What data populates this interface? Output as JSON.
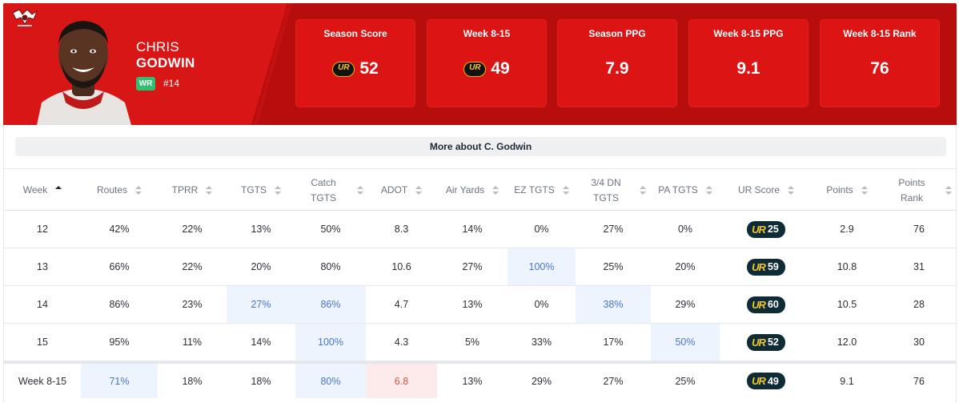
{
  "player": {
    "first_name": "CHRIS",
    "last_name": "GODWIN",
    "position": "WR",
    "jersey": "#14"
  },
  "colors": {
    "header_bg": "#b70d0d",
    "panel_bg": "#d91616",
    "card_bg": "#dd1414",
    "badge_green": "#2fc06f",
    "highlight_blue": "#eef4fd",
    "highlight_red": "#fdeaea",
    "ur_pill_bg": "#0f2b36",
    "ur_gold": "#f4c430"
  },
  "stat_cards": [
    {
      "label": "Season Score",
      "value": "52",
      "ur_icon": true
    },
    {
      "label": "Week 8-15",
      "value": "49",
      "ur_icon": true
    },
    {
      "label": "Season PPG",
      "value": "7.9",
      "ur_icon": false
    },
    {
      "label": "Week 8-15 PPG",
      "value": "9.1",
      "ur_icon": false
    },
    {
      "label": "Week 8-15 Rank",
      "value": "76",
      "ur_icon": false
    }
  ],
  "ur_mark": "UR",
  "more_button": "More about C. Godwin",
  "table": {
    "columns": [
      {
        "key": "week",
        "label": "Week",
        "sorted": true
      },
      {
        "key": "routes",
        "label": "Routes"
      },
      {
        "key": "tprr",
        "label": "TPRR"
      },
      {
        "key": "tgts",
        "label": "TGTS"
      },
      {
        "key": "catch_tgts",
        "label": "Catch TGTS"
      },
      {
        "key": "adot",
        "label": "ADOT"
      },
      {
        "key": "air_yards",
        "label": "Air Yards"
      },
      {
        "key": "ez_tgts",
        "label": "EZ TGTS"
      },
      {
        "key": "dn34_tgts",
        "label": "3/4 DN TGTS"
      },
      {
        "key": "pa_tgts",
        "label": "PA TGTS"
      },
      {
        "key": "ur_score",
        "label": "UR Score"
      },
      {
        "key": "points",
        "label": "Points"
      },
      {
        "key": "points_rank",
        "label": "Points Rank"
      }
    ],
    "rows": [
      {
        "week": "12",
        "routes": "42%",
        "tprr": "22%",
        "tgts": "13%",
        "catch_tgts": "50%",
        "adot": "8.3",
        "air_yards": "14%",
        "ez_tgts": "0%",
        "dn34_tgts": "27%",
        "pa_tgts": "0%",
        "ur_score": "25",
        "points": "2.9",
        "points_rank": "76",
        "hl": {}
      },
      {
        "week": "13",
        "routes": "66%",
        "tprr": "22%",
        "tgts": "20%",
        "catch_tgts": "80%",
        "adot": "10.6",
        "air_yards": "27%",
        "ez_tgts": "100%",
        "dn34_tgts": "25%",
        "pa_tgts": "20%",
        "ur_score": "59",
        "points": "10.8",
        "points_rank": "31",
        "hl": {
          "ez_tgts": "blue"
        }
      },
      {
        "week": "14",
        "routes": "86%",
        "tprr": "23%",
        "tgts": "27%",
        "catch_tgts": "86%",
        "adot": "4.7",
        "air_yards": "13%",
        "ez_tgts": "0%",
        "dn34_tgts": "38%",
        "pa_tgts": "29%",
        "ur_score": "60",
        "points": "10.5",
        "points_rank": "28",
        "hl": {
          "tgts": "blue",
          "catch_tgts": "blue",
          "dn34_tgts": "blue"
        }
      },
      {
        "week": "15",
        "routes": "95%",
        "tprr": "11%",
        "tgts": "14%",
        "catch_tgts": "100%",
        "adot": "4.3",
        "air_yards": "5%",
        "ez_tgts": "33%",
        "dn34_tgts": "17%",
        "pa_tgts": "50%",
        "ur_score": "52",
        "points": "12.0",
        "points_rank": "30",
        "hl": {
          "catch_tgts": "blue",
          "pa_tgts": "blue"
        }
      }
    ],
    "total_row": {
      "week": "Week 8-15",
      "routes": "71%",
      "tprr": "18%",
      "tgts": "18%",
      "catch_tgts": "80%",
      "adot": "6.8",
      "air_yards": "13%",
      "ez_tgts": "29%",
      "dn34_tgts": "27%",
      "pa_tgts": "25%",
      "ur_score": "49",
      "points": "9.1",
      "points_rank": "76",
      "hl": {
        "routes": "blue",
        "catch_tgts": "blue",
        "adot": "red"
      }
    }
  }
}
